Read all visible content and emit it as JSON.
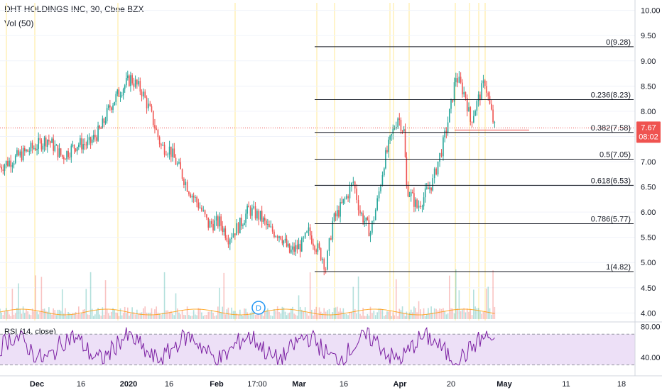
{
  "header": {
    "symbol_line": "DHT HOLDINGS INC, 30, Cboe BZX",
    "volume_label": "Vol (50)",
    "rsi_label": "RSI (14, close)"
  },
  "price_tag": {
    "value": "7.67",
    "countdown": "08:02",
    "color": "#ef5350"
  },
  "event_marker": {
    "label": "D",
    "color": "#2196f3"
  },
  "colors": {
    "up": "#26a69a",
    "down": "#ef5350",
    "fib": "#131722",
    "rsi_line": "#7b1fa2",
    "rsi_band": "#ede0f7",
    "vol_ma": "#ff9800",
    "session_highlight": "#fff3c4"
  },
  "chart_data": [
    {
      "type": "candlestick",
      "title": "DHT HOLDINGS INC, 30, Cboe BZX",
      "y_axis": {
        "ticks": [
          4.0,
          4.5,
          5.0,
          5.5,
          6.0,
          6.5,
          7.0,
          7.5,
          8.0,
          8.5,
          9.0,
          9.5,
          10.0
        ],
        "range": [
          3.85,
          10.15
        ]
      },
      "x_axis": {
        "tick_labels": [
          "Dec",
          "16",
          "2020",
          "16",
          "Feb",
          "17:00",
          "Mar",
          "16",
          "Apr",
          "20",
          "May",
          "11",
          "18"
        ]
      },
      "last_price": 7.67,
      "fib_retracement": [
        {
          "level": "0",
          "price": 9.28
        },
        {
          "level": "0.236",
          "price": 8.23
        },
        {
          "level": "0.382",
          "price": 7.58
        },
        {
          "level": "0.5",
          "price": 7.05
        },
        {
          "level": "0.618",
          "price": 6.53
        },
        {
          "level": "0.786",
          "price": 5.77
        },
        {
          "level": "1",
          "price": 4.82
        }
      ],
      "price_path": [
        {
          "x": "Nov 25",
          "y": 6.9
        },
        {
          "x": "Dec 2",
          "y": 7.3
        },
        {
          "x": "Dec 6",
          "y": 7.45
        },
        {
          "x": "Dec 11",
          "y": 7.1
        },
        {
          "x": "Dec 16",
          "y": 7.35
        },
        {
          "x": "Dec 20",
          "y": 7.35
        },
        {
          "x": "Dec 24",
          "y": 7.65
        },
        {
          "x": "Dec 27",
          "y": 8.1
        },
        {
          "x": "Dec 31",
          "y": 8.45
        },
        {
          "x": "Jan 3",
          "y": 8.65
        },
        {
          "x": "Jan 7",
          "y": 8.4
        },
        {
          "x": "Jan 10",
          "y": 8.0
        },
        {
          "x": "Jan 14",
          "y": 7.3
        },
        {
          "x": "Jan 17",
          "y": 7.25
        },
        {
          "x": "Jan 21",
          "y": 6.8
        },
        {
          "x": "Jan 24",
          "y": 6.45
        },
        {
          "x": "Jan 28",
          "y": 6.1
        },
        {
          "x": "Jan 31",
          "y": 5.75
        },
        {
          "x": "Feb 4",
          "y": 5.8
        },
        {
          "x": "Feb 7",
          "y": 5.5
        },
        {
          "x": "Feb 11",
          "y": 5.75
        },
        {
          "x": "Feb 14",
          "y": 6.05
        },
        {
          "x": "Feb 18",
          "y": 5.9
        },
        {
          "x": "Feb 21",
          "y": 5.65
        },
        {
          "x": "Feb 25",
          "y": 5.55
        },
        {
          "x": "Feb 28",
          "y": 5.2
        },
        {
          "x": "Mar 3",
          "y": 5.35
        },
        {
          "x": "Mar 5",
          "y": 5.6
        },
        {
          "x": "Mar 9",
          "y": 5.1
        },
        {
          "x": "Mar 10",
          "y": 4.9
        },
        {
          "x": "Mar 12",
          "y": 5.8
        },
        {
          "x": "Mar 16",
          "y": 6.3
        },
        {
          "x": "Mar 18",
          "y": 6.6
        },
        {
          "x": "Mar 20",
          "y": 6.0
        },
        {
          "x": "Mar 23",
          "y": 5.6
        },
        {
          "x": "Mar 25",
          "y": 6.2
        },
        {
          "x": "Mar 27",
          "y": 7.0
        },
        {
          "x": "Mar 30",
          "y": 7.7
        },
        {
          "x": "Mar 31",
          "y": 7.9
        },
        {
          "x": "Apr 2",
          "y": 7.6
        },
        {
          "x": "Apr 3",
          "y": 6.5
        },
        {
          "x": "Apr 7",
          "y": 6.1
        },
        {
          "x": "Apr 9",
          "y": 6.25
        },
        {
          "x": "Apr 13",
          "y": 6.6
        },
        {
          "x": "Apr 15",
          "y": 7.0
        },
        {
          "x": "Apr 17",
          "y": 7.35
        },
        {
          "x": "Apr 20",
          "y": 8.1
        },
        {
          "x": "Apr 21",
          "y": 8.7
        },
        {
          "x": "Apr 23",
          "y": 8.3
        },
        {
          "x": "Apr 24",
          "y": 7.8
        },
        {
          "x": "Apr 27",
          "y": 8.6
        },
        {
          "x": "Apr 28",
          "y": 8.1
        },
        {
          "x": "Apr 29",
          "y": 7.67
        }
      ],
      "volume_series": {
        "name": "Vol (50)"
      },
      "rsi": {
        "name": "RSI (14, close)",
        "y_ticks": [
          40.0,
          80.0
        ],
        "bands": [
          30,
          70
        ],
        "range": [
          25,
          85
        ]
      }
    }
  ]
}
